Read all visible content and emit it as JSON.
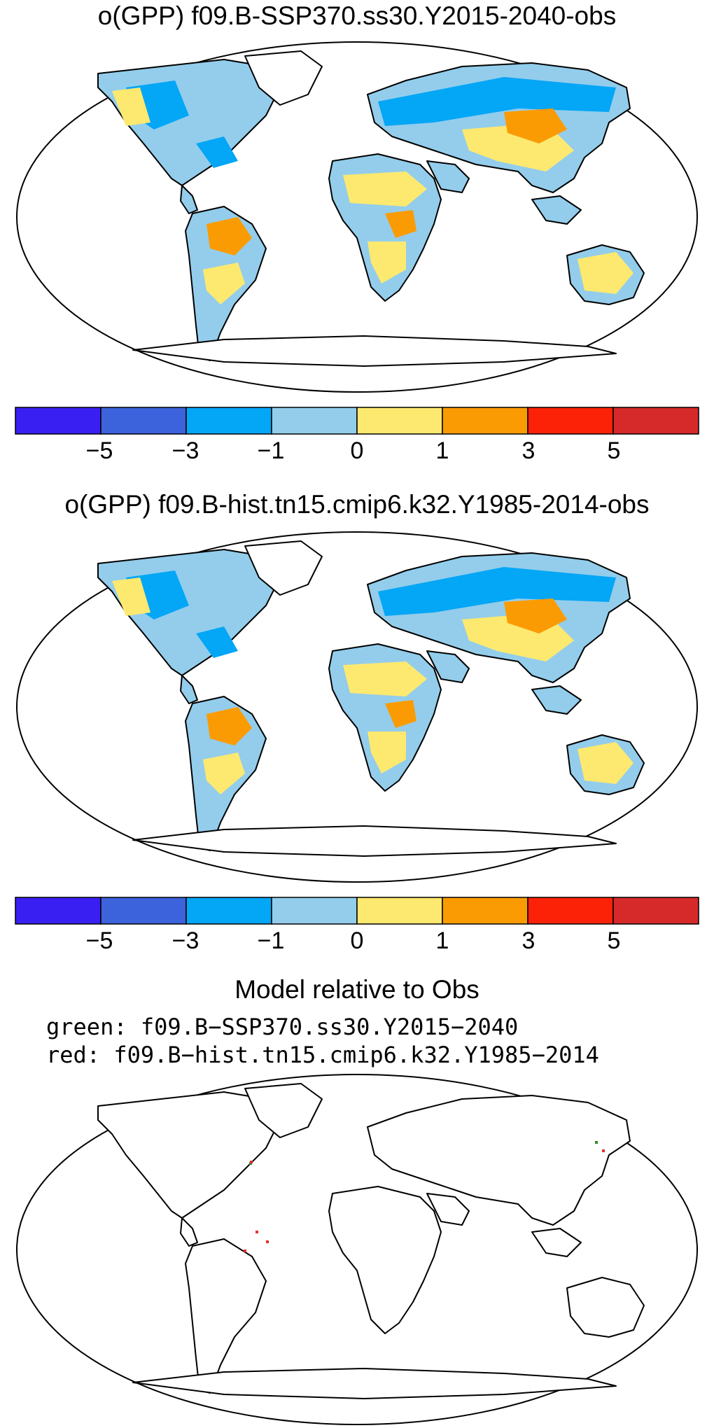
{
  "panel1": {
    "title": "o(GPP) f09.B-SSP370.ss30.Y2015-2040-obs"
  },
  "panel2": {
    "title": "o(GPP) f09.B-hist.tn15.cmip6.k32.Y1985-2014-obs"
  },
  "panel3": {
    "title": "Model relative to Obs",
    "legend": [
      "green: f09.B−SSP370.ss30.Y2015−2040",
      "red: f09.B−hist.tn15.cmip6.k32.Y1985−2014"
    ]
  },
  "colorbar": {
    "colors": [
      "#3a1ff2",
      "#3c62dc",
      "#04a6f6",
      "#93cdeb",
      "#fde970",
      "#fb9b03",
      "#fc2207",
      "#d62a2a"
    ],
    "tick_labels": [
      "−5",
      "−3",
      "−1",
      "0",
      "1",
      "3",
      "5"
    ]
  },
  "map_colors": {
    "outline": "#000000",
    "ocean": "#ffffff",
    "land_blue": "#04a6f6",
    "land_light_blue": "#93cdeb",
    "land_yellow": "#fde970",
    "land_orange": "#fb9b03",
    "marker_green": "#2e8b2e",
    "marker_red": "#e03030"
  }
}
